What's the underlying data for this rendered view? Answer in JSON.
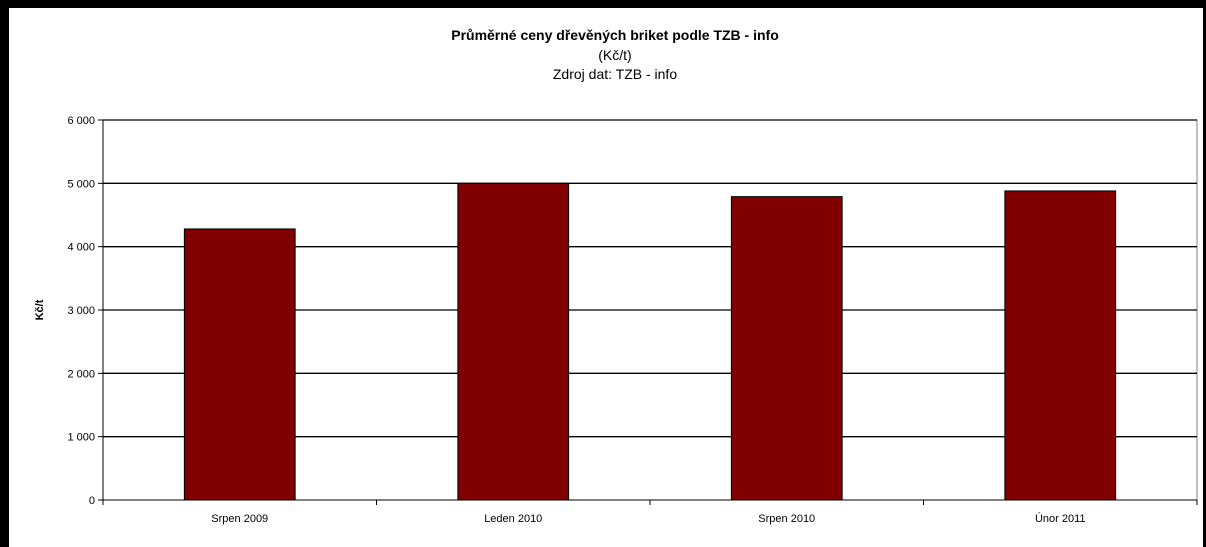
{
  "chart_data": {
    "type": "bar",
    "title": "Průměrné ceny dřevěných briket podle TZB - info",
    "subtitle_lines": [
      "(Kč/t)",
      "Zdroj dat: TZB - info"
    ],
    "xlabel": "",
    "ylabel": "Kč/t",
    "categories": [
      "Srpen 2009",
      "Leden 2010",
      "Srpen 2010",
      "Únor 2011"
    ],
    "values": [
      4280,
      5000,
      4790,
      4880
    ],
    "ylim": [
      0,
      6000
    ],
    "y_ticks": [
      0,
      1000,
      2000,
      3000,
      4000,
      5000,
      6000
    ],
    "y_tick_labels": [
      "0",
      "1 000",
      "2 000",
      "3 000",
      "4 000",
      "5 000",
      "6 000"
    ],
    "grid": true,
    "legend": "none",
    "colors": {
      "bar_fill": "#800000",
      "bar_stroke": "#000000",
      "grid": "#000000",
      "plot_border": "#808080"
    }
  }
}
